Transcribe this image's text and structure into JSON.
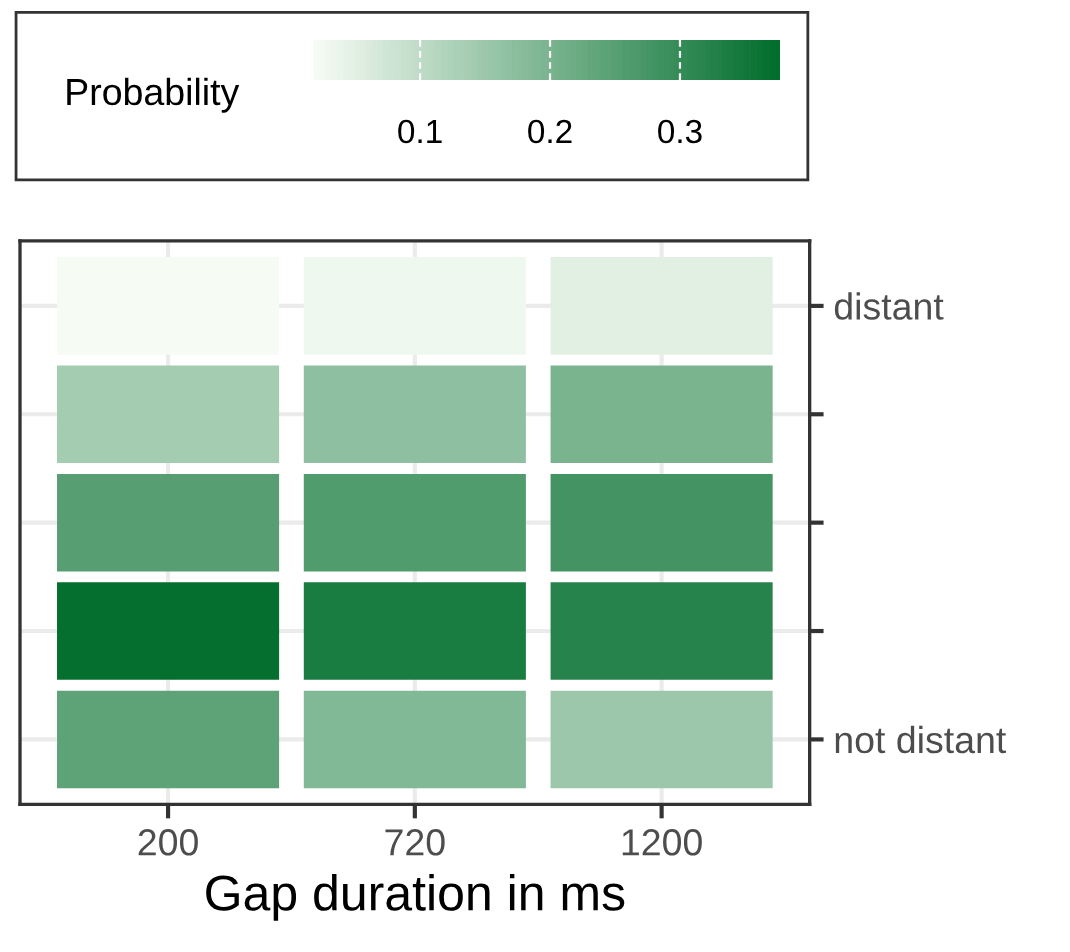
{
  "chart_data": {
    "type": "heatmap",
    "xlabel": "Gap duration in ms",
    "clabel": "Probability",
    "categories": [
      "200",
      "720",
      "1200"
    ],
    "y_categories": [
      "distant",
      null,
      null,
      null,
      "not distant"
    ],
    "cells": [
      [
        0.02,
        0.03,
        0.05
      ],
      [
        0.14,
        0.17,
        0.2
      ],
      [
        0.25,
        0.26,
        0.28
      ],
      [
        0.37,
        0.34,
        0.32
      ],
      [
        0.24,
        0.19,
        0.15
      ]
    ],
    "clim": [
      0.018,
      0.377
    ],
    "cticks": [
      0.1,
      0.2,
      0.3
    ],
    "grid": true
  }
}
